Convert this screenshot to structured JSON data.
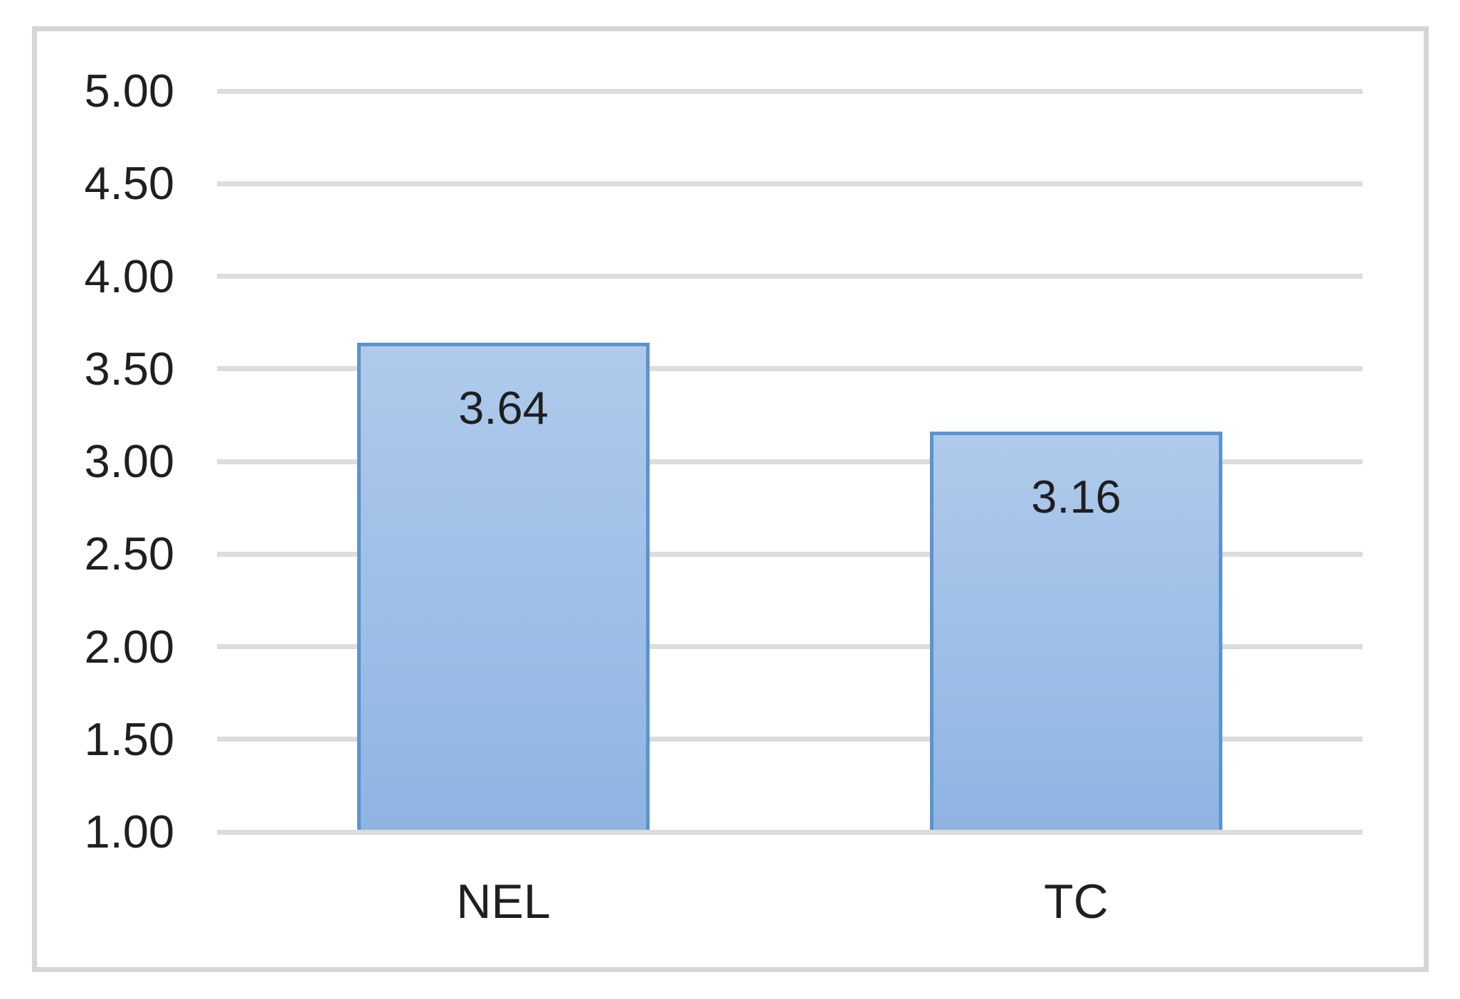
{
  "chart_data": {
    "type": "bar",
    "title": "",
    "xlabel": "",
    "ylabel": "",
    "categories": [
      "NEL",
      "TC"
    ],
    "values": [
      3.64,
      3.16
    ],
    "data_labels": [
      "3.64",
      "3.16"
    ],
    "y_ticks": [
      5.0,
      4.5,
      4.0,
      3.5,
      3.0,
      2.5,
      2.0,
      1.5,
      1.0
    ],
    "y_tick_labels": [
      "5.00",
      "4.50",
      "4.00",
      "3.50",
      "3.00",
      "2.50",
      "2.00",
      "1.50",
      "1.00"
    ],
    "ylim": [
      1.0,
      5.0
    ],
    "grid": true,
    "legend": false,
    "colors": {
      "bar_fill_top": "#afcaeb",
      "bar_fill_bottom": "#8fb4e2",
      "bar_border": "#5b94ce",
      "gridline": "#dcdcdc",
      "frame_border": "#d6d6d6",
      "text": "#1f1f1f",
      "background": "#ffffff"
    }
  }
}
